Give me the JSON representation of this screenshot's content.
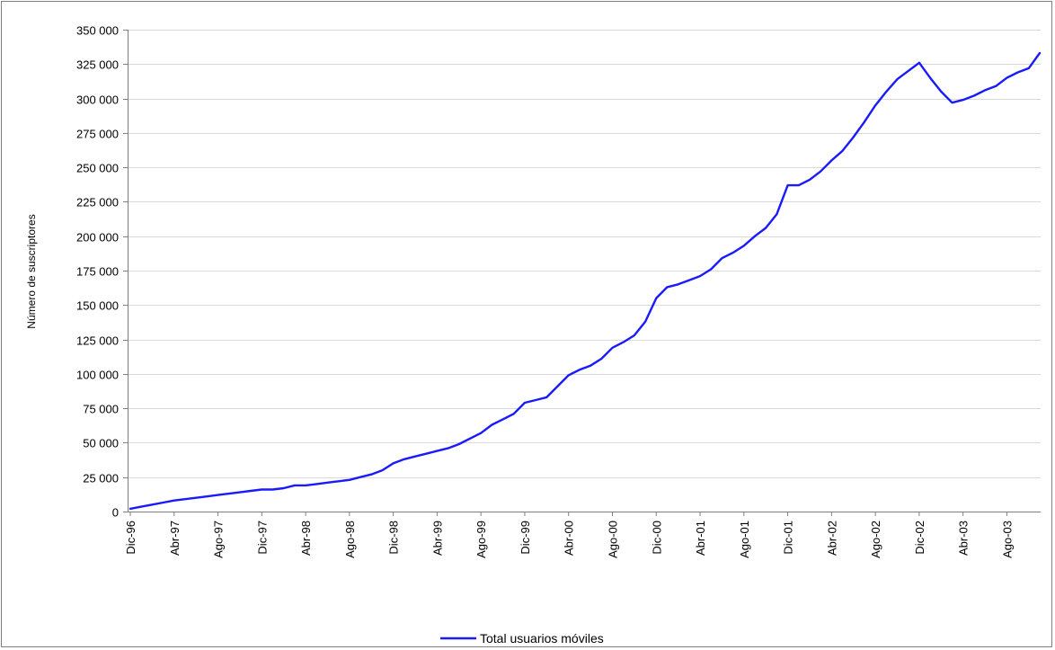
{
  "chart_data": {
    "type": "line",
    "title": "",
    "xlabel": "",
    "ylabel": "Número de suscriptores",
    "ylim": [
      0,
      350000
    ],
    "y_ticks": [
      0,
      25000,
      50000,
      75000,
      100000,
      125000,
      150000,
      175000,
      200000,
      225000,
      250000,
      275000,
      300000,
      325000,
      350000
    ],
    "y_tick_labels": [
      "0",
      "25 000",
      "50 000",
      "75 000",
      "100 000",
      "125 000",
      "150 000",
      "175 000",
      "200 000",
      "225 000",
      "250 000",
      "275 000",
      "300 000",
      "325 000",
      "350 000"
    ],
    "x_tick_labels": [
      "Dic-96",
      "Abr-97",
      "Ago-97",
      "Dic-97",
      "Abr-98",
      "Ago-98",
      "Dic-98",
      "Abr-99",
      "Ago-99",
      "Dic-99",
      "Abr-00",
      "Ago-00",
      "Dic-00",
      "Abr-01",
      "Ago-01",
      "Dic-01",
      "Abr-02",
      "Ago-02",
      "Dic-02",
      "Abr-03",
      "Ago-03"
    ],
    "grid": true,
    "legend_position": "bottom",
    "x": [
      "Dic-96",
      "Ene-97",
      "Feb-97",
      "Mar-97",
      "Abr-97",
      "May-97",
      "Jun-97",
      "Jul-97",
      "Ago-97",
      "Sep-97",
      "Oct-97",
      "Nov-97",
      "Dic-97",
      "Ene-98",
      "Feb-98",
      "Mar-98",
      "Abr-98",
      "May-98",
      "Jun-98",
      "Jul-98",
      "Ago-98",
      "Sep-98",
      "Oct-98",
      "Nov-98",
      "Dic-98",
      "Ene-99",
      "Feb-99",
      "Mar-99",
      "Abr-99",
      "May-99",
      "Jun-99",
      "Jul-99",
      "Ago-99",
      "Sep-99",
      "Oct-99",
      "Nov-99",
      "Dic-99",
      "Ene-00",
      "Feb-00",
      "Mar-00",
      "Abr-00",
      "May-00",
      "Jun-00",
      "Jul-00",
      "Ago-00",
      "Sep-00",
      "Oct-00",
      "Nov-00",
      "Dic-00",
      "Ene-01",
      "Feb-01",
      "Mar-01",
      "Abr-01",
      "May-01",
      "Jun-01",
      "Jul-01",
      "Ago-01",
      "Sep-01",
      "Oct-01",
      "Nov-01",
      "Dic-01",
      "Ene-02",
      "Feb-02",
      "Mar-02",
      "Abr-02",
      "May-02",
      "Jun-02",
      "Jul-02",
      "Ago-02",
      "Sep-02",
      "Oct-02",
      "Nov-02",
      "Dic-02",
      "Ene-03",
      "Feb-03",
      "Mar-03",
      "Abr-03",
      "May-03",
      "Jun-03",
      "Jul-03",
      "Ago-03",
      "Sep-03",
      "Oct-03",
      "Nov-03"
    ],
    "series": [
      {
        "name": "Total usuarios móviles",
        "color": "#1a1aff",
        "values": [
          2000,
          3500,
          5000,
          6500,
          8000,
          9000,
          10000,
          11000,
          12000,
          13000,
          14000,
          15000,
          16000,
          16000,
          17000,
          19000,
          19000,
          20000,
          21000,
          22000,
          23000,
          25000,
          27000,
          30000,
          35000,
          38000,
          40000,
          42000,
          44000,
          46000,
          49000,
          53000,
          57000,
          63000,
          67000,
          71000,
          79000,
          81000,
          83000,
          91000,
          99000,
          103000,
          106000,
          111000,
          119000,
          123000,
          128000,
          138000,
          155000,
          163000,
          165000,
          168000,
          171000,
          176000,
          184000,
          188000,
          193000,
          200000,
          206000,
          216000,
          237000,
          237000,
          241000,
          247000,
          255000,
          262000,
          272000,
          283000,
          295000,
          305000,
          314000,
          320000,
          326000,
          315000,
          305000,
          297000,
          299000,
          302000,
          306000,
          309000,
          315000,
          319000,
          322000,
          333000
        ]
      }
    ]
  }
}
